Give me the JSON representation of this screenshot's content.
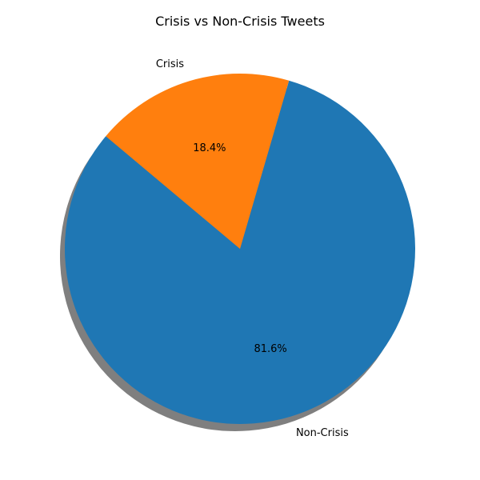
{
  "chart_data": {
    "type": "pie",
    "title": "Crisis vs Non-Crisis Tweets",
    "slices": [
      {
        "label": "Non-Crisis",
        "value": 81.6,
        "pct_label": "81.6%",
        "color": "#1f77b4"
      },
      {
        "label": "Crisis",
        "value": 18.4,
        "pct_label": "18.4%",
        "color": "#ff7f0e"
      }
    ],
    "shadow": true
  }
}
